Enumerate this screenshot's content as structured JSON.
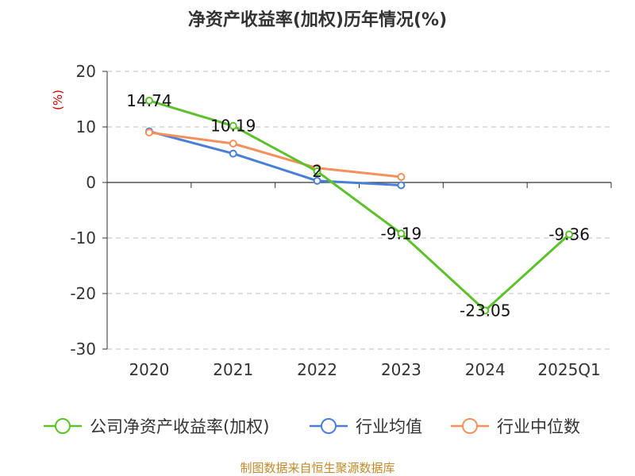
{
  "chart_data": {
    "type": "line",
    "title": "净资产收益率(加权)历年情况(%)",
    "ylabel": "(%)",
    "xlabel": "",
    "categories": [
      "2020",
      "2021",
      "2022",
      "2023",
      "2024",
      "2025Q1"
    ],
    "ylim": [
      -30,
      20
    ],
    "yticks": [
      20,
      10,
      0,
      -10,
      -20,
      -30
    ],
    "grid": true,
    "legend_position": "bottom",
    "series": [
      {
        "name": "公司净资产收益率(加权)",
        "color": "#5cc12b",
        "values": [
          14.74,
          10.19,
          2,
          -9.19,
          -23.05,
          -9.36
        ],
        "labels": [
          "14.74",
          "10.19",
          "2",
          "-9.19",
          "-23.05",
          "-9.36"
        ]
      },
      {
        "name": "行业均值",
        "color": "#4a7fd6",
        "values": [
          9.2,
          5.2,
          0.3,
          -0.5,
          null,
          null
        ]
      },
      {
        "name": "行业中位数",
        "color": "#f5905c",
        "values": [
          9.0,
          7.0,
          2.6,
          1.0,
          null,
          null
        ]
      }
    ],
    "footer": "制图数据来自恒生聚源数据库"
  }
}
